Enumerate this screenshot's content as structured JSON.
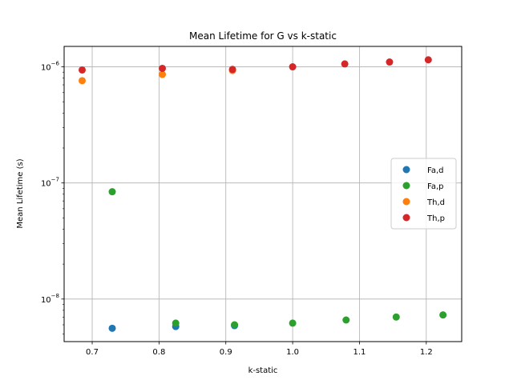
{
  "chart_data": {
    "type": "scatter",
    "title": "Mean Lifetime for G vs k-static",
    "xlabel": "k-static",
    "ylabel": "Mean Lifetime (s)",
    "yscale": "log",
    "xlim": [
      0.658,
      1.253
    ],
    "ylim": [
      4.3e-09,
      1.5e-06
    ],
    "grid": true,
    "legend_position": "center-right",
    "x_ticks": [
      0.7,
      0.8,
      0.9,
      1.0,
      1.1,
      1.2
    ],
    "x_tick_labels": [
      "0.7",
      "0.8",
      "0.9",
      "1.0",
      "1.1",
      "1.2"
    ],
    "y_ticks": [
      1e-08,
      1e-07,
      1e-06
    ],
    "series": [
      {
        "name": "Fa,d",
        "color": "#1f77b4",
        "points": [
          {
            "x": 0.73,
            "y": 5.6e-09
          },
          {
            "x": 0.825,
            "y": 5.8e-09
          },
          {
            "x": 0.913,
            "y": 5.9e-09
          }
        ]
      },
      {
        "name": "Fa,p",
        "color": "#2ca02c",
        "points": [
          {
            "x": 0.73,
            "y": 8.4e-08
          },
          {
            "x": 0.825,
            "y": 6.2e-09
          },
          {
            "x": 0.913,
            "y": 6e-09
          },
          {
            "x": 1.0,
            "y": 6.2e-09
          },
          {
            "x": 1.08,
            "y": 6.6e-09
          },
          {
            "x": 1.155,
            "y": 7e-09
          },
          {
            "x": 1.225,
            "y": 7.3e-09
          }
        ]
      },
      {
        "name": "Th,d",
        "color": "#ff7f0e",
        "points": [
          {
            "x": 0.685,
            "y": 7.6e-07
          },
          {
            "x": 0.805,
            "y": 8.6e-07
          },
          {
            "x": 0.91,
            "y": 9.3e-07
          }
        ]
      },
      {
        "name": "Th,p",
        "color": "#d62728",
        "points": [
          {
            "x": 0.685,
            "y": 9.4e-07
          },
          {
            "x": 0.805,
            "y": 9.7e-07
          },
          {
            "x": 0.91,
            "y": 9.5e-07
          },
          {
            "x": 1.0,
            "y": 1e-06
          },
          {
            "x": 1.078,
            "y": 1.06e-06
          },
          {
            "x": 1.145,
            "y": 1.1e-06
          },
          {
            "x": 1.203,
            "y": 1.15e-06
          }
        ]
      }
    ]
  }
}
